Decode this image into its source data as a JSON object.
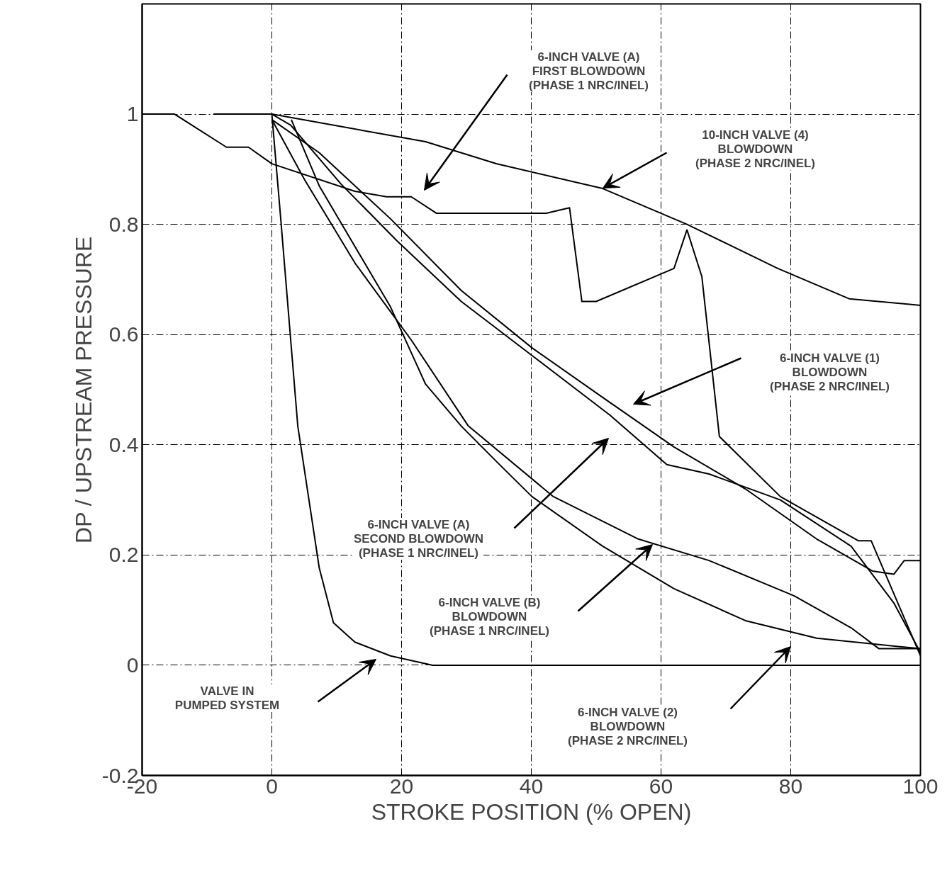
{
  "chart_data": {
    "type": "line",
    "xlabel": "STROKE POSITION (% OPEN)",
    "ylabel": "DP / UPSTREAM PRESSURE",
    "xlim": [
      -20,
      100
    ],
    "ylim": [
      -0.2,
      1.2
    ],
    "xticks": [
      -20,
      0,
      20,
      40,
      60,
      80,
      100
    ],
    "yticks": [
      -0.2,
      0,
      0.2,
      0.4,
      0.6,
      0.8,
      1
    ],
    "grid": true,
    "marker": "none",
    "line_style": "solid",
    "series": [
      {
        "color": "#000000",
        "x": [
          -9,
          0,
          23.7,
          34.6,
          51,
          64,
          78,
          89,
          100
        ],
        "values": [
          1.0,
          1.0,
          0.95,
          0.91,
          0.865,
          0.8,
          0.72,
          0.665,
          0.653
        ]
      },
      {
        "color": "#000000",
        "x": [
          -20,
          -15,
          -7,
          -3.6,
          0,
          12.8,
          17.7,
          21.5,
          25.4,
          42.3,
          45.9,
          47.8,
          50,
          62,
          64,
          66.3,
          69,
          78.4,
          90.4,
          92.4,
          100
        ],
        "values": [
          1.0,
          1.0,
          0.94,
          0.94,
          0.91,
          0.86,
          0.85,
          0.85,
          0.82,
          0.82,
          0.83,
          0.66,
          0.66,
          0.72,
          0.79,
          0.705,
          0.415,
          0.306,
          0.226,
          0.226,
          0.017
        ]
      },
      {
        "color": "#000000",
        "x": [
          0,
          7.3,
          18.3,
          29.2,
          40.1,
          51,
          62,
          73,
          84,
          92.6,
          95.9,
          97.5,
          100
        ],
        "values": [
          0.99,
          0.93,
          0.81,
          0.68,
          0.576,
          0.486,
          0.396,
          0.32,
          0.229,
          0.171,
          0.165,
          0.19,
          0.19
        ]
      },
      {
        "color": "#000000",
        "x": [
          0,
          2.9,
          10.6,
          19.3,
          29.2,
          40,
          52.1,
          60.9,
          67.4,
          78.4,
          89.3,
          95.9,
          100
        ],
        "values": [
          1.0,
          0.98,
          0.874,
          0.77,
          0.66,
          0.563,
          0.454,
          0.364,
          0.347,
          0.3,
          0.216,
          0.113,
          0.023
        ]
      },
      {
        "color": "#000000",
        "x": [
          0,
          5.1,
          12.8,
          21.5,
          30.3,
          43.4,
          56.5,
          67.4,
          80.5,
          89.3,
          93.6,
          100
        ],
        "values": [
          0.99,
          0.88,
          0.73,
          0.59,
          0.434,
          0.306,
          0.229,
          0.19,
          0.126,
          0.068,
          0.03,
          0.03
        ]
      },
      {
        "color": "#000000",
        "x": [
          3,
          7.3,
          18.3,
          23.7,
          29.2,
          34.6,
          40.1,
          51,
          62,
          73,
          84,
          100
        ],
        "values": [
          0.99,
          0.87,
          0.65,
          0.51,
          0.434,
          0.37,
          0.306,
          0.216,
          0.139,
          0.081,
          0.049,
          0.03
        ]
      },
      {
        "color": "#000000",
        "x": [
          0,
          1.3,
          4,
          7.3,
          9.5,
          12.8,
          18.3,
          24.8,
          100
        ],
        "values": [
          1.0,
          0.82,
          0.434,
          0.177,
          0.077,
          0.042,
          0.017,
          0.0,
          0.0
        ]
      }
    ],
    "annotations": [
      "6-INCH VALVE (A)\nFIRST BLOWDOWN\n(PHASE 1 NRC/INEL)",
      "10-INCH VALVE (4)\nBLOWDOWN\n(PHASE 2 NRC/INEL)",
      "6-INCH VALVE (1)\nBLOWDOWN\n(PHASE 2 NRC/INEL)",
      "6-INCH VALVE (A)\nSECOND BLOWDOWN\n(PHASE 1 NRC/INEL)",
      "6-INCH VALVE (B)\nBLOWDOWN\n(PHASE 1 NRC/INEL)",
      "VALVE IN\nPUMPED SYSTEM",
      "6-INCH VALVE (2)\nBLOWDOWN\n(PHASE 2 NRC/INEL)"
    ]
  }
}
